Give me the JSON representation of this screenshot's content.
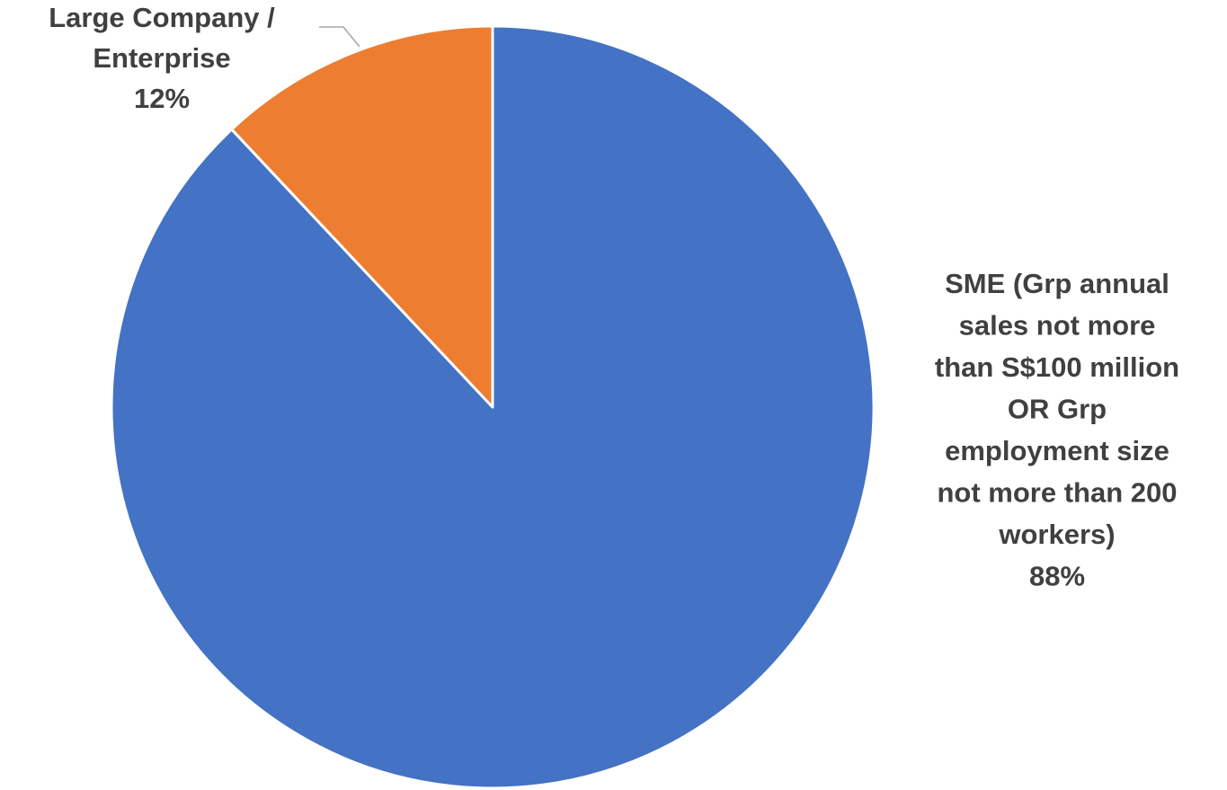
{
  "chart_data": {
    "type": "pie",
    "title": "",
    "start_angle": "12 o'clock",
    "direction": "clockwise",
    "slices": [
      {
        "name": "SME (Grp annual sales not more than S$100 million OR Grp employment size not more than 200 workers)",
        "value": 88,
        "percent_label": "88%",
        "color": "#4472C4",
        "label_lines": [
          "SME (Grp annual",
          "sales not more",
          "than S$100 million",
          "OR Grp",
          "employment size",
          "not more than 200",
          "workers)",
          "88%"
        ]
      },
      {
        "name": "Large Company / Enterprise",
        "value": 12,
        "percent_label": "12%",
        "color": "#ED7D31",
        "label_lines": [
          "Large Company /",
          "Enterprise",
          "12%"
        ]
      }
    ],
    "legend": "none",
    "data_labels": "category name and percentage"
  }
}
